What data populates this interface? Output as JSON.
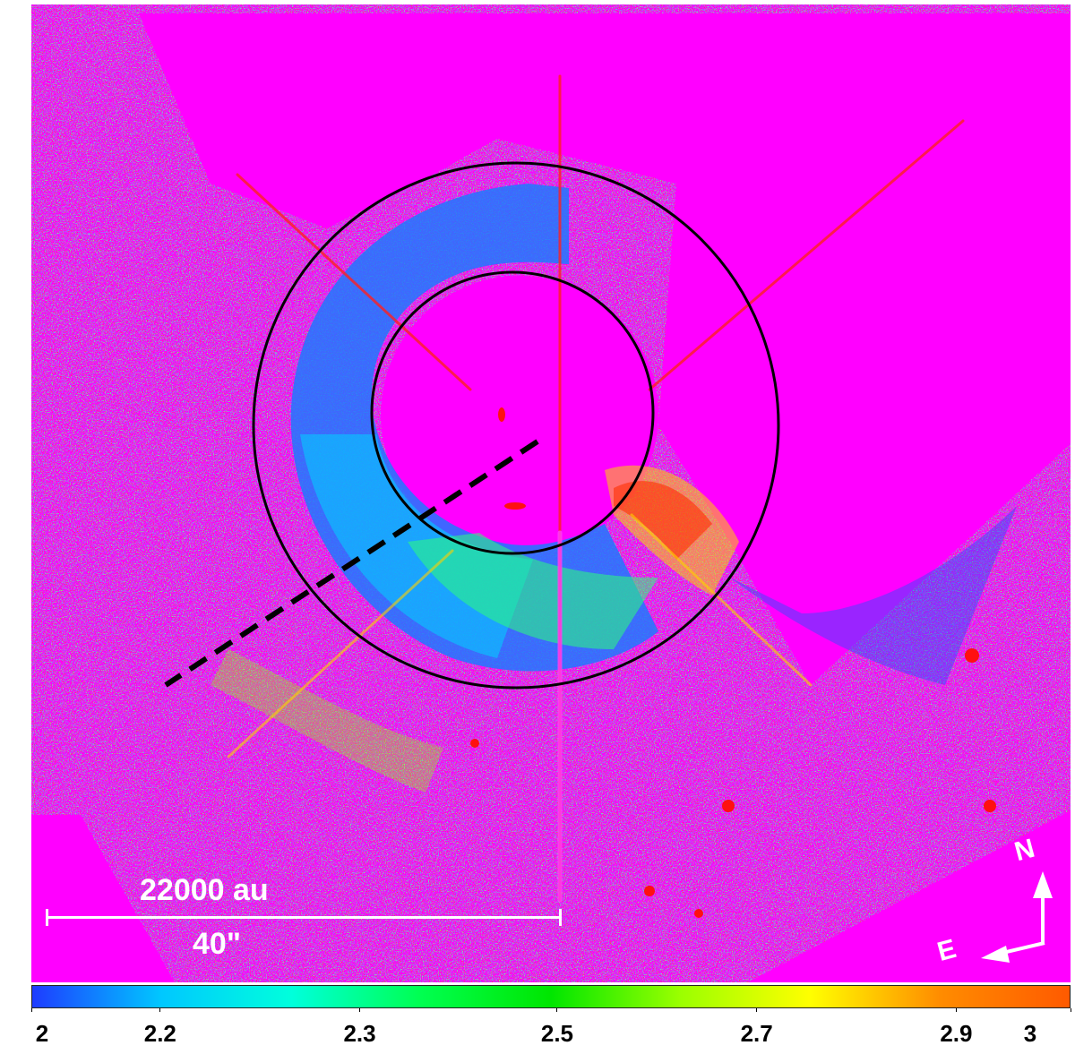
{
  "image": {
    "background_color": "#ff00ff",
    "subject": "color ratio map with noise, dust ring and circular annuli",
    "annotation_color": "#000000",
    "label_color": "#ffffff"
  },
  "scale_bar": {
    "physical_label": "22000 au",
    "angular_label": "40\""
  },
  "compass": {
    "north_label": "N",
    "east_label": "E"
  },
  "colorbar": {
    "stops": [
      "#1e3cff",
      "#00c8ff",
      "#00ffdc",
      "#00ff50",
      "#00e600",
      "#9bff00",
      "#ffff00",
      "#ff8c00",
      "#ff5a00"
    ],
    "ticks": [
      {
        "value": 2,
        "label": "2"
      },
      {
        "value": 2.2,
        "label": "2.2"
      },
      {
        "value": 2.3,
        "label": "2.3"
      },
      {
        "value": 2.5,
        "label": "2.5"
      },
      {
        "value": 2.7,
        "label": "2.7"
      },
      {
        "value": 2.9,
        "label": "2.9"
      },
      {
        "value": 3,
        "label": "3"
      }
    ]
  }
}
